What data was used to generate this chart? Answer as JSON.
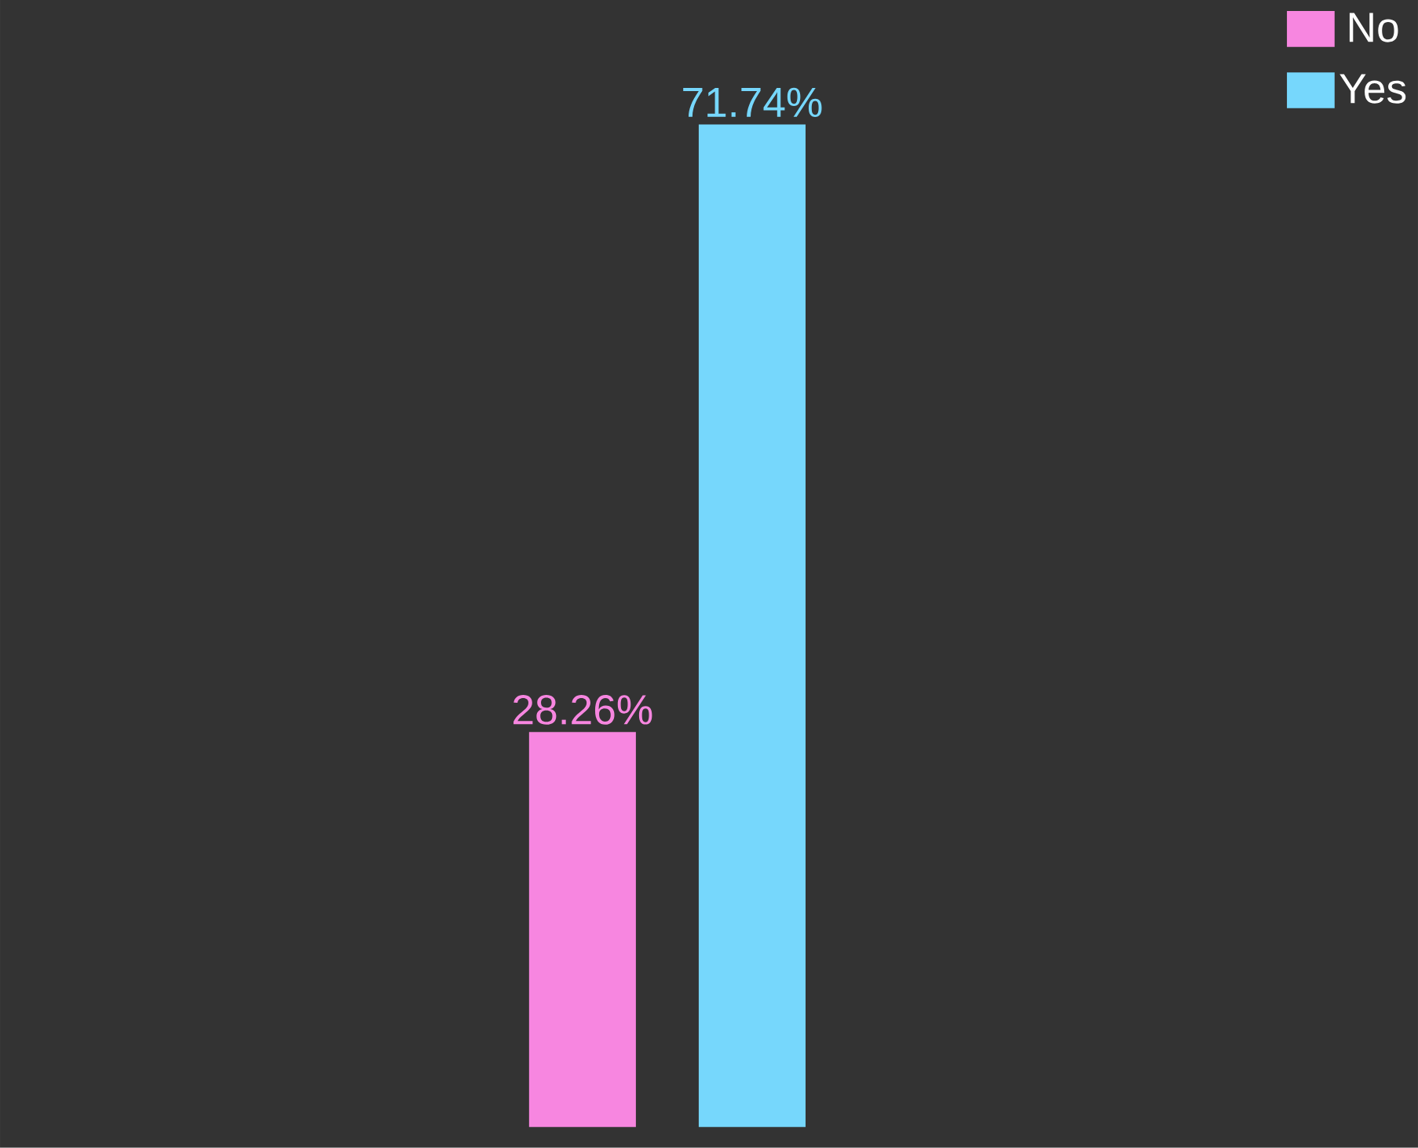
{
  "chart_data": {
    "type": "bar",
    "categories": [
      null
    ],
    "series": [
      {
        "name": "No",
        "color": "#f786e0",
        "values": [
          28.26
        ],
        "value_labels": [
          "28.26%"
        ]
      },
      {
        "name": "Yes",
        "color": "#76d7fc",
        "values": [
          71.74
        ],
        "value_labels": [
          "71.74%"
        ]
      }
    ],
    "legend": "top right"
  }
}
